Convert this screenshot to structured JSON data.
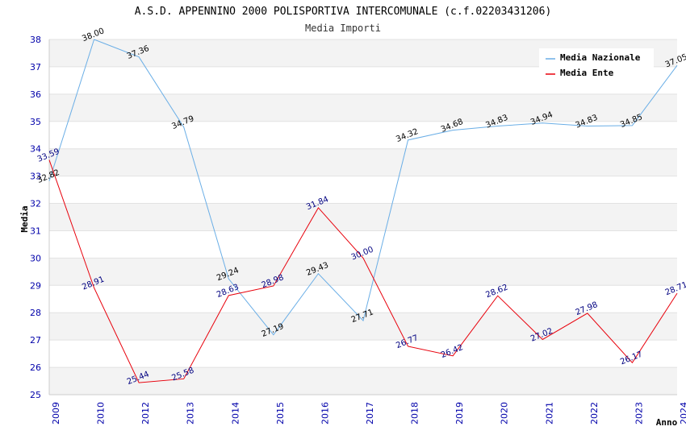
{
  "chart_data": {
    "type": "line",
    "title": "A.S.D. APPENNINO 2000 POLISPORTIVA INTERCOMUNALE (c.f.02203431206)",
    "subtitle": "Media Importi",
    "xlabel": "Anno",
    "ylabel": "Media",
    "ylim": [
      25,
      38
    ],
    "categories": [
      "2009",
      "2010",
      "2012",
      "2013",
      "2014",
      "2015",
      "2016",
      "2017",
      "2018",
      "2019",
      "2020",
      "2021",
      "2022",
      "2023",
      "2024"
    ],
    "yticks": [
      "25",
      "26",
      "27",
      "28",
      "29",
      "30",
      "31",
      "32",
      "33",
      "34",
      "35",
      "36",
      "37",
      "38"
    ],
    "legend_position": "top-right",
    "series": [
      {
        "name": "Media Nazionale",
        "color": "#6aaee6",
        "values": [
          32.82,
          38.0,
          37.36,
          34.79,
          29.24,
          27.19,
          29.43,
          27.71,
          34.32,
          34.68,
          34.83,
          34.94,
          34.83,
          34.85,
          37.05
        ],
        "labels": [
          "32.82",
          "38.00",
          "37.36",
          "34.79",
          "29.24",
          "27.19",
          "29.43",
          "27.71",
          "34.32",
          "34.68",
          "34.83",
          "34.94",
          "34.83",
          "34.85",
          "37.05"
        ]
      },
      {
        "name": "Media Ente",
        "color": "#e8000b",
        "values": [
          33.59,
          28.91,
          25.44,
          25.58,
          28.63,
          28.98,
          31.84,
          30.0,
          26.77,
          26.42,
          28.62,
          27.02,
          27.98,
          26.17,
          28.71
        ],
        "labels": [
          "33.59",
          "28.91",
          "25.44",
          "25.58",
          "28.63",
          "28.98",
          "31.84",
          "30.00",
          "26.77",
          "26.42",
          "28.62",
          "27.02",
          "27.98",
          "26.17",
          "28.71"
        ]
      }
    ]
  }
}
